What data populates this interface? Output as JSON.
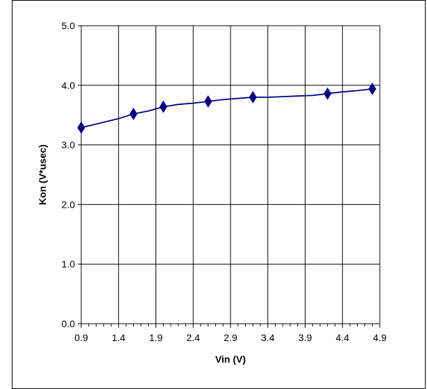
{
  "chart_data": {
    "type": "line",
    "title": "",
    "xlabel": "Vin (V)",
    "ylabel": "Kon (V*usec)",
    "xlim": [
      0.9,
      4.9
    ],
    "ylim": [
      0.0,
      5.0
    ],
    "x_ticks": [
      "0.9",
      "1.4",
      "1.9",
      "2.4",
      "2.9",
      "3.4",
      "3.9",
      "4.4",
      "4.9"
    ],
    "y_ticks": [
      "0.0",
      "1.0",
      "2.0",
      "3.0",
      "4.0",
      "5.0"
    ],
    "grid": true,
    "legend": "none",
    "series": [
      {
        "color": "#00007f",
        "marker": "diamond",
        "curve": [
          [
            0.9,
            3.29
          ],
          [
            1.2,
            3.38
          ],
          [
            1.4,
            3.44
          ],
          [
            1.6,
            3.52
          ],
          [
            1.8,
            3.57
          ],
          [
            2.0,
            3.64
          ],
          [
            2.2,
            3.68
          ],
          [
            2.4,
            3.7
          ],
          [
            2.6,
            3.73
          ],
          [
            2.8,
            3.76
          ],
          [
            3.0,
            3.78
          ],
          [
            3.2,
            3.8
          ],
          [
            3.4,
            3.8
          ],
          [
            3.6,
            3.81
          ],
          [
            3.8,
            3.82
          ],
          [
            4.0,
            3.83
          ],
          [
            4.2,
            3.86
          ],
          [
            4.4,
            3.89
          ],
          [
            4.6,
            3.91
          ],
          [
            4.8,
            3.94
          ]
        ],
        "points": [
          [
            0.9,
            3.29
          ],
          [
            1.6,
            3.52
          ],
          [
            2.0,
            3.64
          ],
          [
            2.6,
            3.73
          ],
          [
            3.2,
            3.8
          ],
          [
            4.2,
            3.86
          ],
          [
            4.8,
            3.94
          ]
        ]
      }
    ]
  }
}
